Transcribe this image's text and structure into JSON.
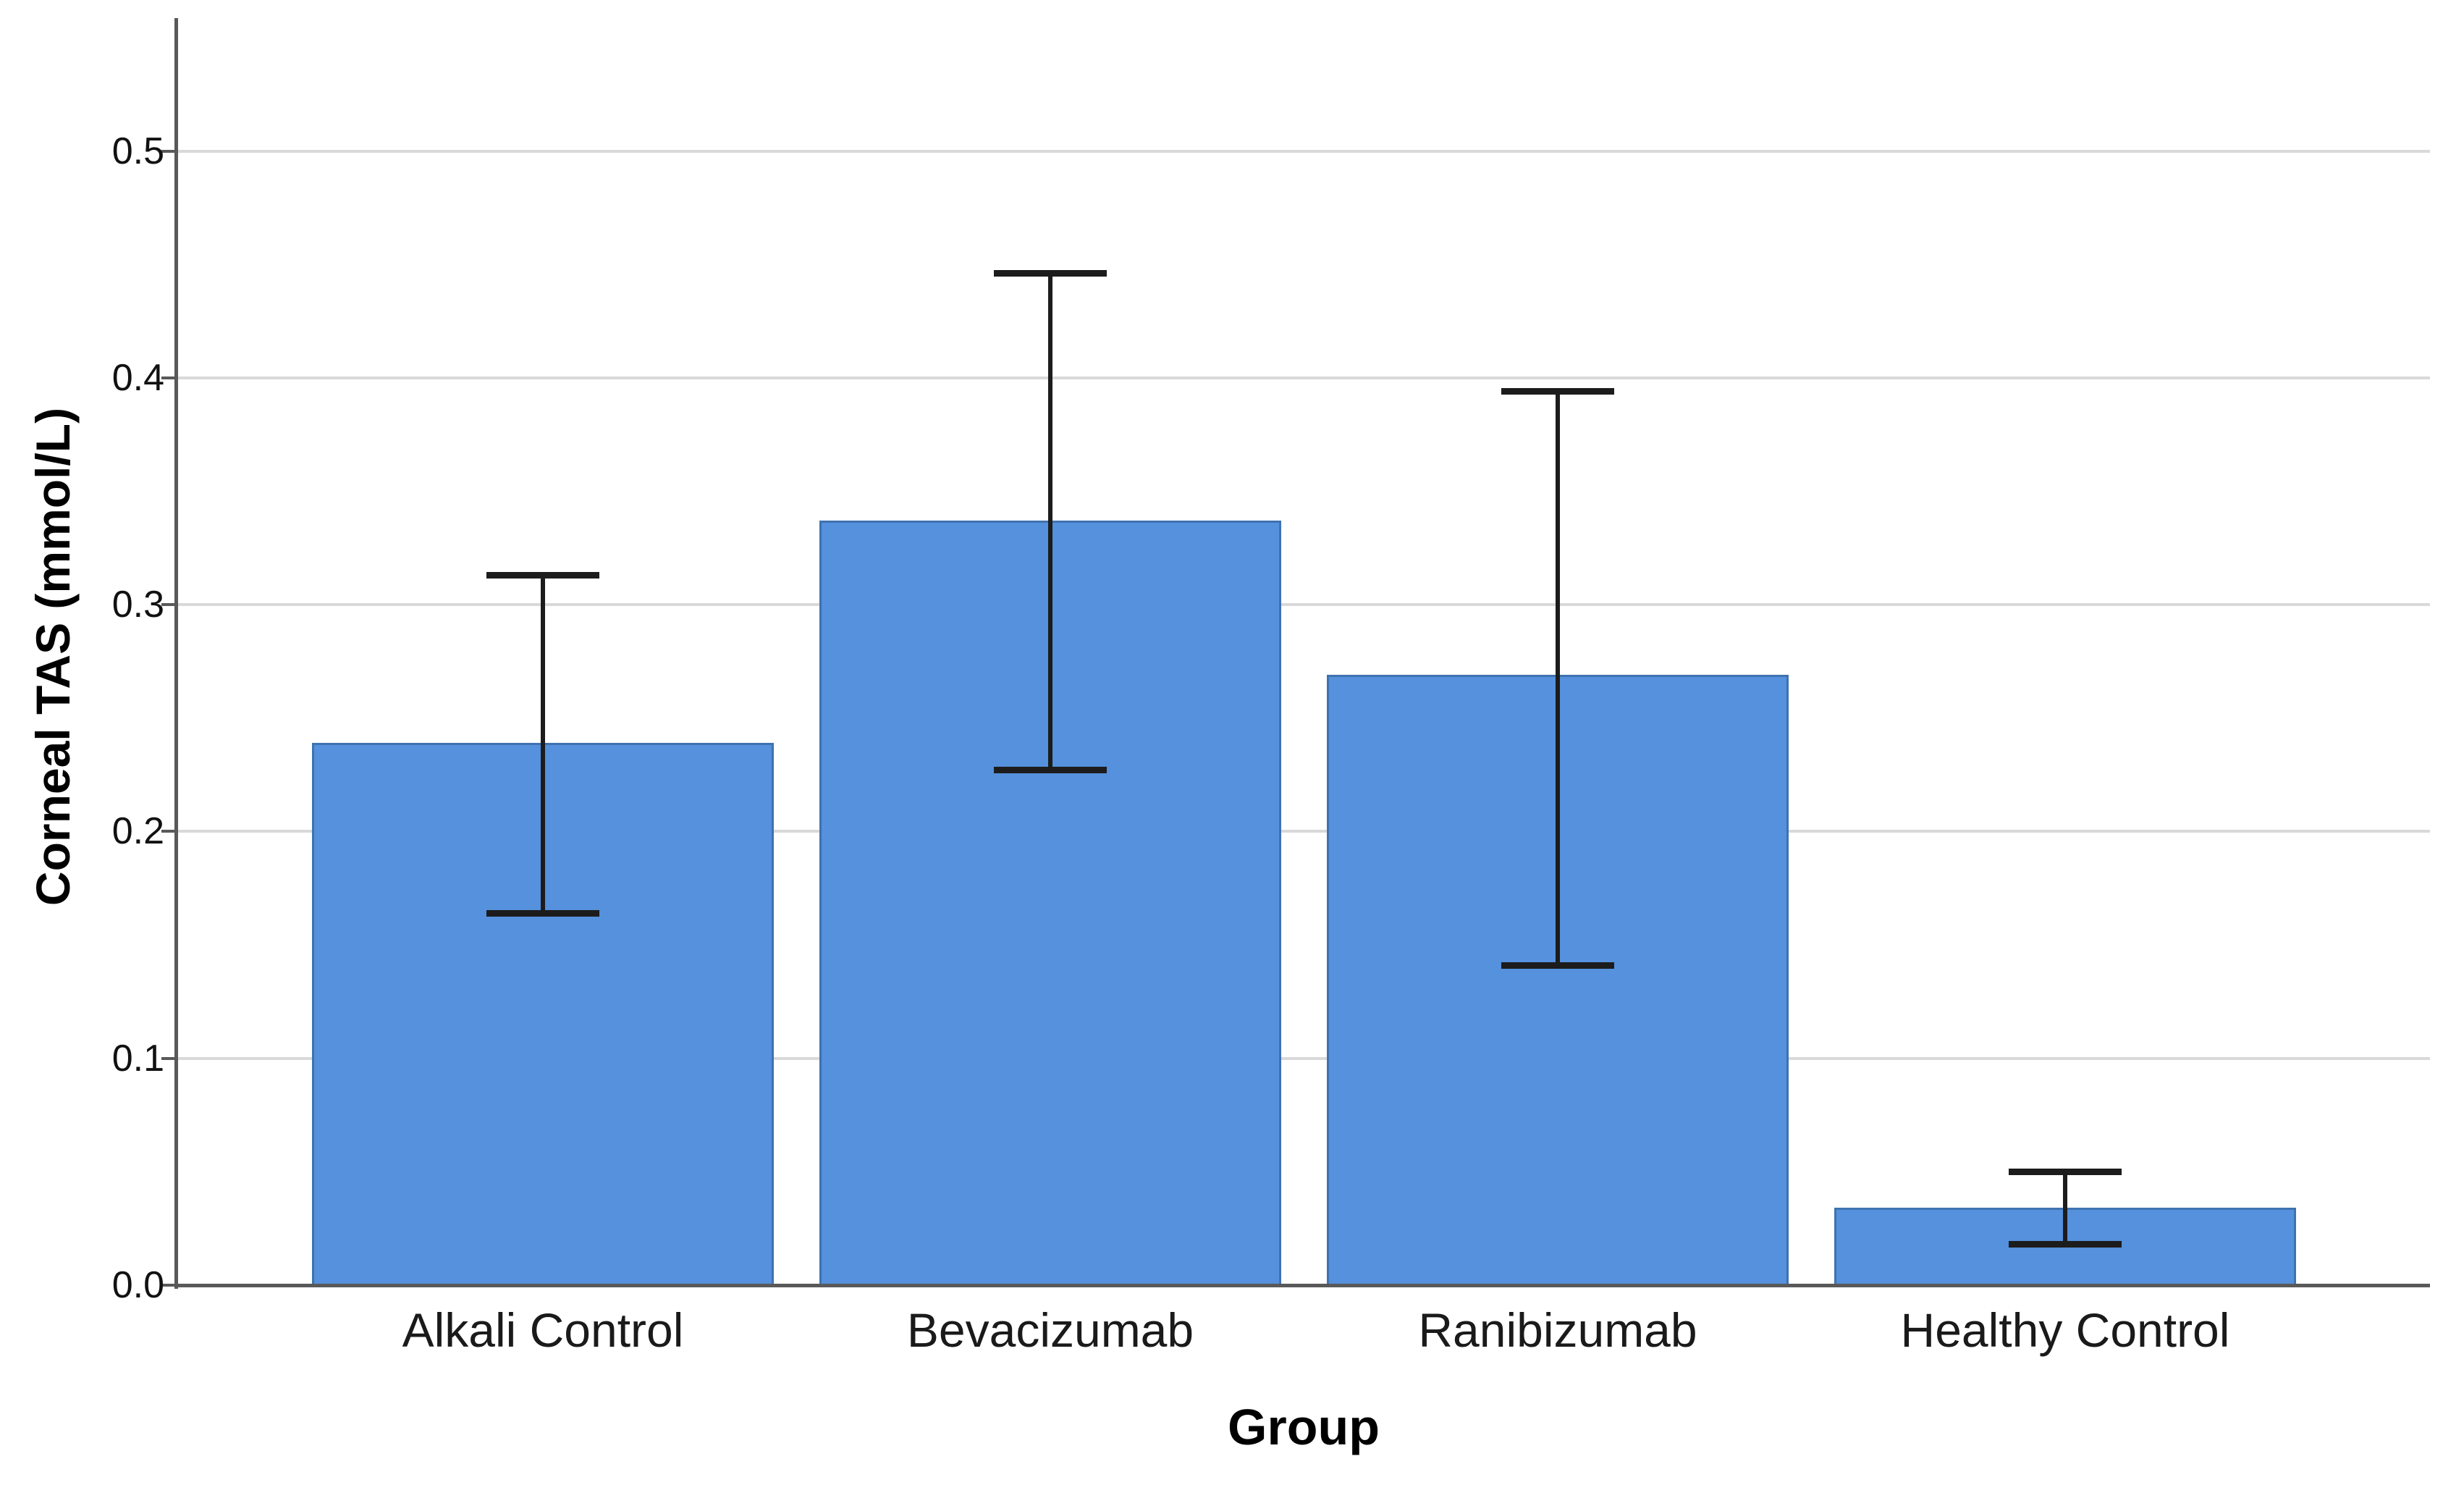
{
  "chart_data": {
    "type": "bar",
    "title": "",
    "categories": [
      "Alkali Control",
      "Bevacizumab",
      "Ranibizumab",
      "Healthy Control"
    ],
    "series": [
      {
        "name": "Corneal TAS",
        "values": [
          0.239,
          0.337,
          0.269,
          0.034
        ],
        "error_low": [
          0.164,
          0.227,
          0.141,
          0.018
        ],
        "error_high": [
          0.313,
          0.446,
          0.394,
          0.05
        ]
      }
    ],
    "xlabel": "Group",
    "ylabel": "Corneal TAS (mmol/L)",
    "yticks": [
      "0.0",
      "0.1",
      "0.2",
      "0.3",
      "0.4",
      "0.5"
    ],
    "ylim": [
      0,
      0.557
    ],
    "grid": "horizontal",
    "legend": "none",
    "colors": {
      "bar_fill": "#5591dc",
      "bar_border": "#3f72b0",
      "error_bar": "#1c1c1c",
      "axis": "#595959",
      "gridline": "#d9d9d9",
      "tick_text": "#111111",
      "category_text": "#1a1a1a"
    }
  }
}
